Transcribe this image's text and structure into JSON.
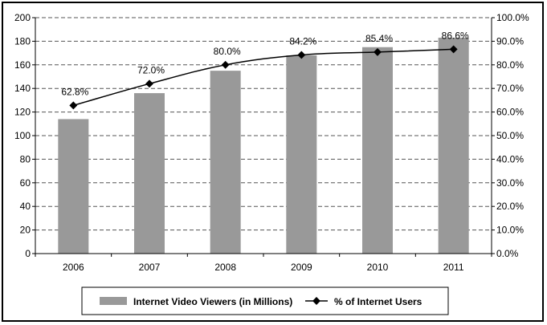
{
  "chart_data": {
    "type": "bar",
    "categories": [
      "2006",
      "2007",
      "2008",
      "2009",
      "2010",
      "2011"
    ],
    "series": [
      {
        "name": "Internet Video Viewers (in Millions)",
        "type": "bar",
        "axis": "left",
        "values": [
          114,
          136,
          155,
          168,
          175,
          183
        ],
        "color": "#999999"
      },
      {
        "name": "% of Internet Users",
        "type": "line",
        "axis": "right",
        "values": [
          62.8,
          72.0,
          80.0,
          84.2,
          85.4,
          86.6
        ],
        "labels": [
          "62.8%",
          "72.0%",
          "80.0%",
          "84.2%",
          "85.4%",
          "86.6%"
        ],
        "color": "#000000"
      }
    ],
    "y_left": {
      "ylim": [
        0,
        200
      ],
      "ticks": [
        "0",
        "20",
        "40",
        "60",
        "80",
        "100",
        "120",
        "140",
        "160",
        "180",
        "200"
      ]
    },
    "y_right": {
      "ylim": [
        0,
        100
      ],
      "ticks": [
        "0.0%",
        "10.0%",
        "20.0%",
        "30.0%",
        "40.0%",
        "50.0%",
        "60.0%",
        "70.0%",
        "80.0%",
        "90.0%",
        "100.0%"
      ]
    },
    "grid": true,
    "grid_style": "dashed",
    "legend_position": "bottom"
  }
}
